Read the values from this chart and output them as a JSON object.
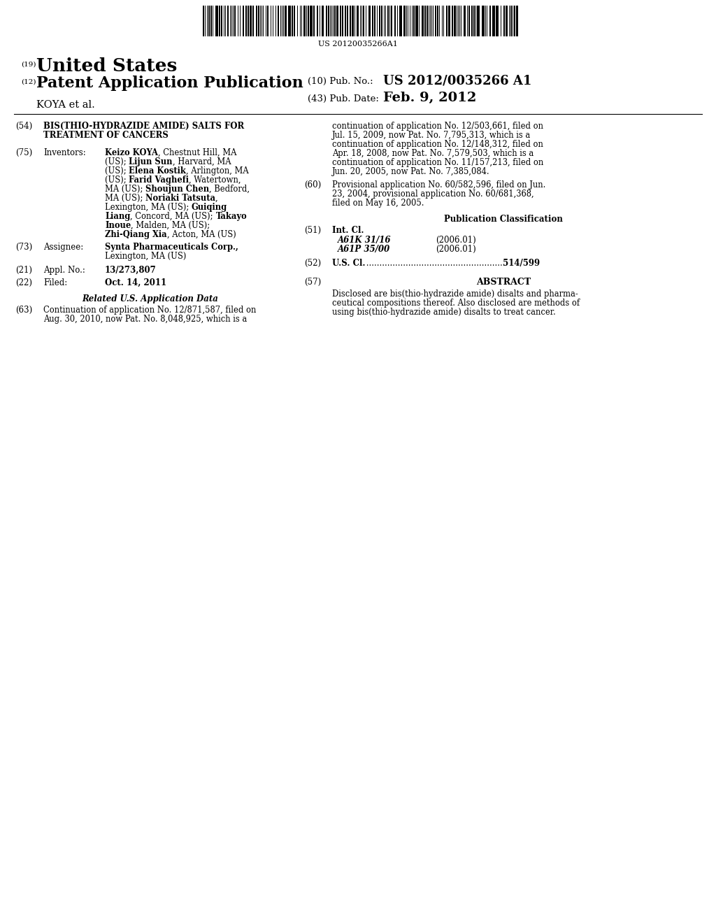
{
  "background_color": "#ffffff",
  "barcode_text": "US 20120035266A1",
  "country_label": "(19)",
  "country_name": "United States",
  "pub_type_label": "(12)",
  "pub_type": "Patent Application Publication",
  "assignee_name_header": "KOYA et al.",
  "pub_no_label": "(10) Pub. No.:",
  "pub_no": "US 2012/0035266 A1",
  "pub_date_label": "(43) Pub. Date:",
  "pub_date": "Feb. 9, 2012",
  "title_label": "(54)",
  "title_line1": "BIS(THIO-HYDRAZIDE AMIDE) SALTS FOR",
  "title_line2": "TREATMENT OF CANCERS",
  "inventors_label": "(75)",
  "inventors_key": "Inventors:",
  "assignee_label": "(73)",
  "assignee_key": "Assignee:",
  "assignee_line1": "Synta Pharmaceuticals Corp.,",
  "assignee_line2": "Lexington, MA (US)",
  "appl_label": "(21)",
  "appl_key": "Appl. No.:",
  "appl_no": "13/273,807",
  "filed_label": "(22)",
  "filed_key": "Filed:",
  "filed_date": "Oct. 14, 2011",
  "related_header": "Related U.S. Application Data",
  "cont63_label": "(63)",
  "cont63_line1": "Continuation of application No. 12/871,587, filed on",
  "cont63_line2": "Aug. 30, 2010, now Pat. No. 8,048,925, which is a",
  "right_cont_lines": [
    "continuation of application No. 12/503,661, filed on",
    "Jul. 15, 2009, now Pat. No. 7,795,313, which is a",
    "continuation of application No. 12/148,312, filed on",
    "Apr. 18, 2008, now Pat. No. 7,579,503, which is a",
    "continuation of application No. 11/157,213, filed on",
    "Jun. 20, 2005, now Pat. No. 7,385,084."
  ],
  "prov_label": "(60)",
  "prov_lines": [
    "Provisional application No. 60/582,596, filed on Jun.",
    "23, 2004, provisional application No. 60/681,368,",
    "filed on May 16, 2005."
  ],
  "pub_class_header": "Publication Classification",
  "int_cl_label": "(51)",
  "int_cl_key": "Int. Cl.",
  "int_cl_line1": "A61K 31/16",
  "int_cl_year1": "(2006.01)",
  "int_cl_line2": "A61P 35/00",
  "int_cl_year2": "(2006.01)",
  "us_cl_label": "(52)",
  "us_cl_key": "U.S. Cl.",
  "us_cl_dots": " .....................................................",
  "us_cl_num": " 514/599",
  "abstract_label": "(57)",
  "abstract_header": "ABSTRACT",
  "abstract_lines": [
    "Disclosed are bis(thio-hydrazide amide) disalts and pharma-",
    "ceutical compositions thereof. Also disclosed are methods of",
    "using bis(thio-hydrazide amide) disalts to treat cancer."
  ]
}
